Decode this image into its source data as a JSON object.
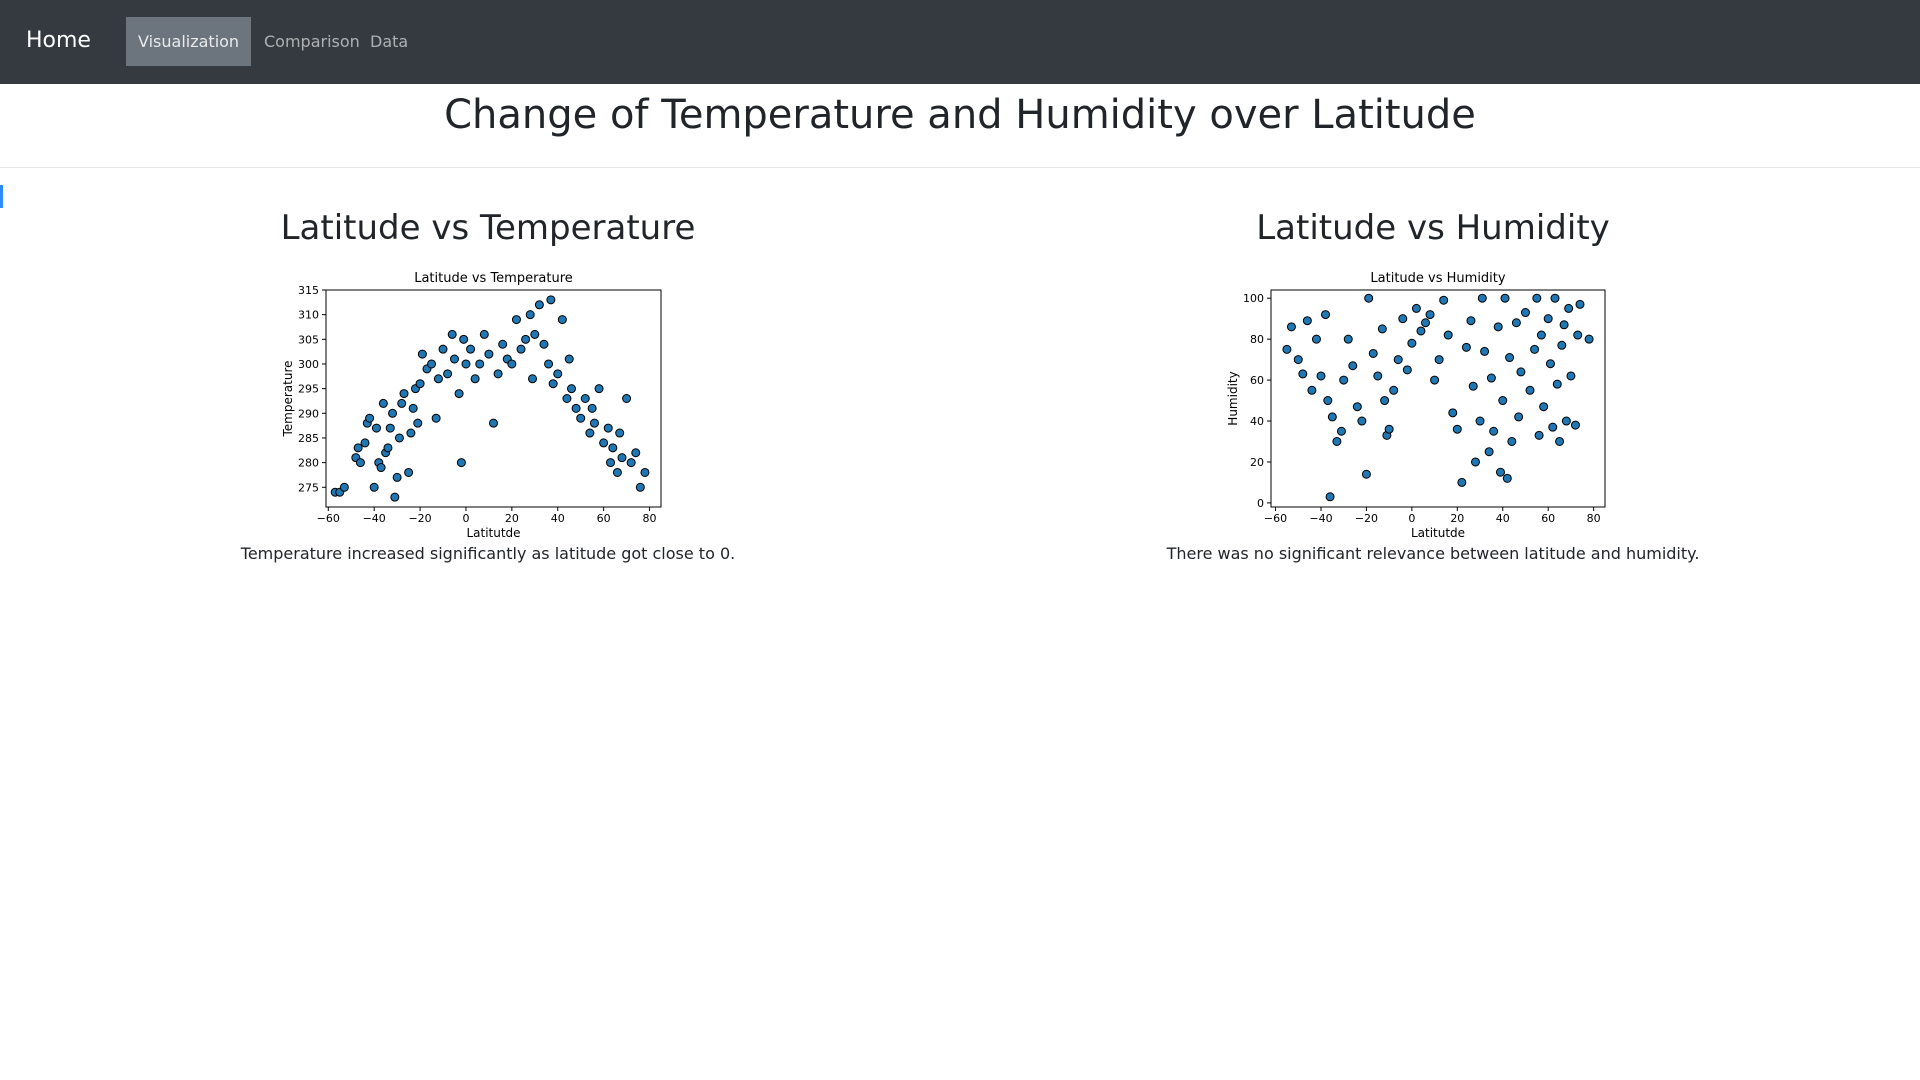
{
  "nav": {
    "brand": "Home",
    "items": [
      "Visualization",
      "Comparison",
      "Data"
    ]
  },
  "header": {
    "title": "Change of Temperature and Humidity over Latitude"
  },
  "sections": [
    {
      "heading": "Latitude vs Temperature",
      "caption": "Temperature increased significantly as latitude got close to 0."
    },
    {
      "heading": "Latitude vs Humidity",
      "caption": "There was no significant relevance between latitude and humidity."
    }
  ],
  "chart_data": [
    {
      "type": "scatter",
      "title": "Latitude vs Temperature",
      "xlabel": "Latitutde",
      "ylabel": "Temperature",
      "color": "#1f77b4",
      "edgecolor": "#000000",
      "xlim": [
        -61,
        85
      ],
      "ylim": [
        271,
        315
      ],
      "xticks": [
        {
          "value": -60,
          "label": "−60"
        },
        {
          "value": -40,
          "label": "−40"
        },
        {
          "value": -20,
          "label": "−20"
        },
        0,
        20,
        40,
        60,
        80
      ],
      "yticks": [
        275,
        280,
        285,
        290,
        295,
        300,
        305,
        310,
        315
      ],
      "x": [
        -57,
        -55,
        -53,
        -48,
        -47,
        -46,
        -44,
        -43,
        -42,
        -40,
        -39,
        -38,
        -37,
        -36,
        -35,
        -34,
        -33,
        -32,
        -31,
        -30,
        -29,
        -28,
        -27,
        -25,
        -24,
        -23,
        -22,
        -21,
        -20,
        -19,
        -17,
        -15,
        -13,
        -12,
        -10,
        -8,
        -6,
        -5,
        -3,
        -2,
        -1,
        0,
        2,
        4,
        6,
        8,
        10,
        12,
        14,
        16,
        18,
        20,
        22,
        24,
        26,
        28,
        29,
        30,
        32,
        34,
        36,
        37,
        38,
        40,
        42,
        44,
        45,
        46,
        48,
        50,
        52,
        54,
        55,
        56,
        58,
        60,
        62,
        63,
        64,
        66,
        67,
        68,
        70,
        72,
        74,
        76,
        78
      ],
      "y": [
        274,
        274,
        275,
        281,
        283,
        280,
        284,
        288,
        289,
        275,
        287,
        280,
        279,
        292,
        282,
        283,
        287,
        290,
        273,
        277,
        285,
        292,
        294,
        278,
        286,
        291,
        295,
        288,
        296,
        302,
        299,
        300,
        289,
        297,
        303,
        298,
        306,
        301,
        294,
        280,
        305,
        300,
        303,
        297,
        300,
        306,
        302,
        288,
        298,
        304,
        301,
        300,
        309,
        303,
        305,
        310,
        297,
        306,
        312,
        304,
        300,
        313,
        296,
        298,
        309,
        293,
        301,
        295,
        291,
        289,
        293,
        286,
        291,
        288,
        295,
        284,
        287,
        280,
        283,
        278,
        286,
        281,
        293,
        280,
        282,
        275,
        278
      ]
    },
    {
      "type": "scatter",
      "title": "Latitude vs Humidity",
      "xlabel": "Latitutde",
      "ylabel": "Humidity",
      "color": "#1f77b4",
      "edgecolor": "#000000",
      "xlim": [
        -62,
        85
      ],
      "ylim": [
        -2,
        104
      ],
      "xticks": [
        {
          "value": -60,
          "label": "−60"
        },
        {
          "value": -40,
          "label": "−40"
        },
        {
          "value": -20,
          "label": "−20"
        },
        0,
        20,
        40,
        60,
        80
      ],
      "yticks": [
        0,
        20,
        40,
        60,
        80,
        100
      ],
      "x": [
        -55,
        -53,
        -50,
        -48,
        -46,
        -44,
        -42,
        -40,
        -38,
        -37,
        -36,
        -35,
        -33,
        -31,
        -30,
        -28,
        -26,
        -24,
        -22,
        -20,
        -19,
        -17,
        -15,
        -13,
        -12,
        -11,
        -10,
        -8,
        -6,
        -4,
        -2,
        0,
        2,
        4,
        6,
        8,
        10,
        12,
        14,
        16,
        18,
        20,
        22,
        24,
        26,
        27,
        28,
        30,
        31,
        32,
        34,
        35,
        36,
        38,
        39,
        40,
        41,
        42,
        43,
        44,
        46,
        47,
        48,
        50,
        52,
        54,
        55,
        56,
        57,
        58,
        60,
        61,
        62,
        63,
        64,
        65,
        66,
        67,
        68,
        69,
        70,
        72,
        73,
        74,
        78
      ],
      "y": [
        75,
        86,
        70,
        63,
        89,
        55,
        80,
        62,
        92,
        50,
        3,
        42,
        30,
        35,
        60,
        80,
        67,
        47,
        40,
        14,
        100,
        73,
        62,
        85,
        50,
        33,
        36,
        55,
        70,
        90,
        65,
        78,
        95,
        84,
        88,
        92,
        60,
        70,
        99,
        82,
        44,
        36,
        10,
        76,
        89,
        57,
        20,
        40,
        100,
        74,
        25,
        61,
        35,
        86,
        15,
        50,
        100,
        12,
        71,
        30,
        88,
        42,
        64,
        93,
        55,
        75,
        100,
        33,
        82,
        47,
        90,
        68,
        37,
        100,
        58,
        30,
        77,
        87,
        40,
        95,
        62,
        38,
        82,
        97,
        80
      ]
    }
  ]
}
